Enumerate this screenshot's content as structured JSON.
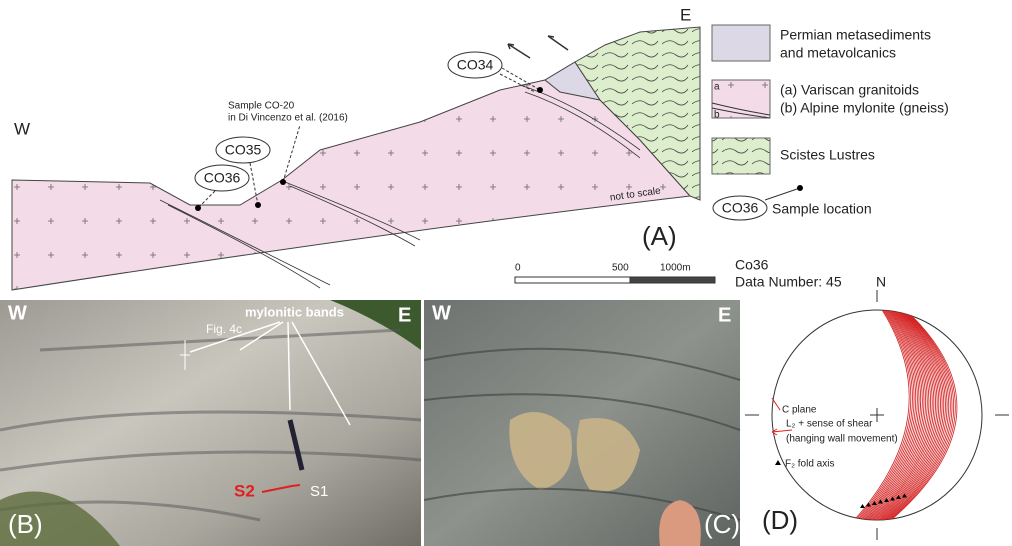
{
  "figure": {
    "panel_a": {
      "east": "E",
      "west": "W",
      "samples": [
        "CO34",
        "CO35",
        "CO36"
      ],
      "reference": [
        "Sample CO-20",
        "in Di Vincenzo et al. (2016)"
      ],
      "not_to_scale": "not to scale",
      "label": "(A)",
      "scale_bar": [
        "0",
        "500",
        "1000m"
      ]
    },
    "legend": {
      "permian": [
        "Permian metasediments",
        "and metavolcanics"
      ],
      "granitoid_keys": [
        "a",
        "b"
      ],
      "granitoid": [
        "(a) Variscan granitoids",
        "(b) Alpine mylonite (gneiss)"
      ],
      "schist": "Scistes Lustres",
      "sample_id": "CO36",
      "sample_location": "Sample location"
    },
    "panel_b": {
      "west": "W",
      "east": "E",
      "bands": "mylonitic bands",
      "fig_ref": "Fig. 4c",
      "s2": "S2",
      "s1": "S1",
      "label": "(B)"
    },
    "panel_c": {
      "west": "W",
      "east": "E",
      "label": "(C)"
    },
    "panel_d": {
      "sample": "Co36",
      "data_number": "Data Number: 45",
      "north": "N",
      "legend": [
        "C plane",
        "L₂ + sense of shear",
        "(hanging wall movement)",
        "F₂ fold axis"
      ],
      "label": "(D)"
    }
  }
}
